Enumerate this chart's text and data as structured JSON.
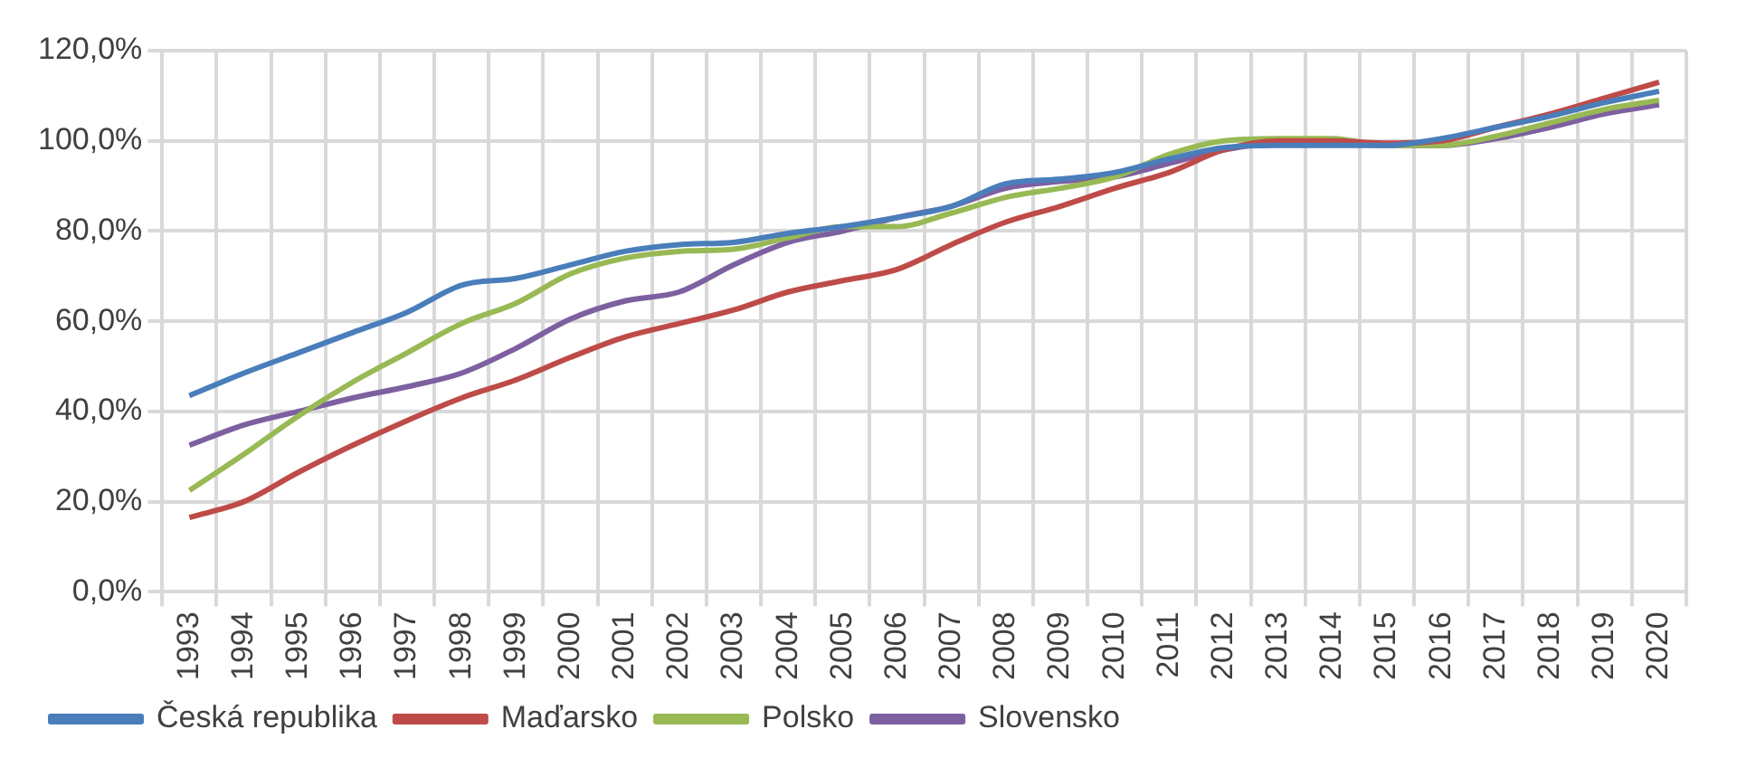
{
  "chart_data": {
    "type": "line",
    "categories": [
      "1993",
      "1994",
      "1995",
      "1996",
      "1997",
      "1998",
      "1999",
      "2000",
      "2001",
      "2002",
      "2003",
      "2004",
      "2005",
      "2006",
      "2007",
      "2008",
      "2009",
      "2010",
      "2011",
      "2012",
      "2013",
      "2014",
      "2015",
      "2016",
      "2017",
      "2018",
      "2019",
      "2020"
    ],
    "series": [
      {
        "name": "Česká republika",
        "color": "#4a7ebb",
        "values": [
          43.5,
          48.5,
          53,
          57.5,
          62,
          68,
          69.5,
          72.5,
          75.5,
          77,
          77.5,
          79.5,
          81,
          83,
          85.5,
          90.5,
          91.5,
          93,
          96,
          98.5,
          99,
          99,
          99,
          100.5,
          103,
          105.5,
          108.5,
          111
        ]
      },
      {
        "name": "Maďarsko",
        "color": "#be4b48",
        "values": [
          16.5,
          20,
          26.5,
          32.5,
          38,
          43,
          47,
          52,
          56.5,
          59.5,
          62.5,
          66.5,
          69,
          71.5,
          77,
          82,
          85.5,
          89.5,
          93,
          98,
          100,
          100,
          99.5,
          100,
          103,
          106,
          109.5,
          113
        ]
      },
      {
        "name": "Polsko",
        "color": "#98b954",
        "values": [
          22.5,
          30.5,
          39,
          46.5,
          53,
          59.5,
          64,
          70.5,
          74,
          75.5,
          76,
          78.5,
          81,
          81,
          84,
          87.5,
          89.5,
          92,
          97,
          100,
          100.5,
          100.5,
          99,
          99,
          101,
          104,
          107,
          109
        ]
      },
      {
        "name": "Slovensko",
        "color": "#7d60a0",
        "values": [
          32.5,
          37,
          40,
          43,
          45.5,
          48.5,
          54,
          60.5,
          64.5,
          66.5,
          72.5,
          77.5,
          80,
          83,
          85.5,
          89.5,
          91,
          92,
          95,
          98,
          99.5,
          99.5,
          99,
          99,
          100.5,
          103,
          106,
          108
        ]
      }
    ],
    "ylim": [
      0,
      120
    ],
    "yticks": [
      {
        "value": 0,
        "label": "0,0%"
      },
      {
        "value": 20,
        "label": "20,0%"
      },
      {
        "value": 40,
        "label": "40,0%"
      },
      {
        "value": 60,
        "label": "60,0%"
      },
      {
        "value": 80,
        "label": "80,0%"
      },
      {
        "value": 100,
        "label": "100,0%"
      },
      {
        "value": 120,
        "label": "120,0%"
      }
    ],
    "grid": true,
    "legend": "bottom left",
    "marker": "none",
    "line_style": "solid"
  }
}
